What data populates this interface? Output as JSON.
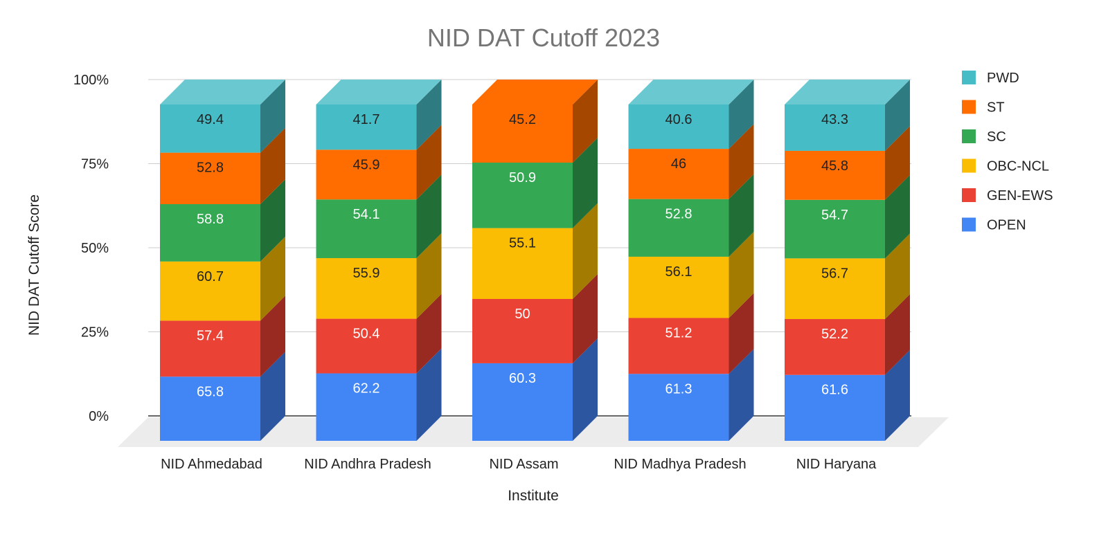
{
  "chart_data": {
    "type": "bar",
    "stacked": "percent",
    "three_d": true,
    "title": "NID DAT Cutoff 2023",
    "xlabel": "Institute",
    "ylabel": "NID DAT Cutoff Score",
    "yticks": [
      "0%",
      "25%",
      "50%",
      "75%",
      "100%"
    ],
    "ylim": [
      0,
      100
    ],
    "grid": true,
    "legend_position": "right",
    "categories": [
      "NID Ahmedabad",
      "NID Andhra Pradesh",
      "NID Assam",
      "NID Madhya Pradesh",
      "NID Haryana"
    ],
    "series": [
      {
        "name": "OPEN",
        "color": "#4285f4",
        "side_color": "#2d56a0",
        "label_color": "#ffffff",
        "values": [
          65.8,
          62.2,
          60.3,
          61.3,
          61.6
        ]
      },
      {
        "name": "GEN-EWS",
        "color": "#ea4335",
        "side_color": "#982a22",
        "label_color": "#ffffff",
        "values": [
          57.4,
          50.4,
          50,
          51.2,
          52.2
        ]
      },
      {
        "name": "OBC-NCL",
        "color": "#fbbc04",
        "side_color": "#a37b00",
        "label_color": "#222222",
        "values": [
          60.7,
          55.9,
          55.1,
          56.1,
          56.7
        ]
      },
      {
        "name": "SC",
        "color": "#34a853",
        "side_color": "#216e36",
        "label_color": "#ffffff",
        "values": [
          58.8,
          54.1,
          50.9,
          52.8,
          54.7
        ]
      },
      {
        "name": "ST",
        "color": "#ff6d01",
        "side_color": "#a64700",
        "label_color": "#222222",
        "values": [
          52.8,
          45.9,
          45.2,
          46,
          45.8
        ]
      },
      {
        "name": "PWD",
        "color": "#46bdc6",
        "side_color": "#2e7b81",
        "label_color": "#222222",
        "values": [
          49.4,
          41.7,
          null,
          40.6,
          43.3
        ]
      }
    ]
  }
}
